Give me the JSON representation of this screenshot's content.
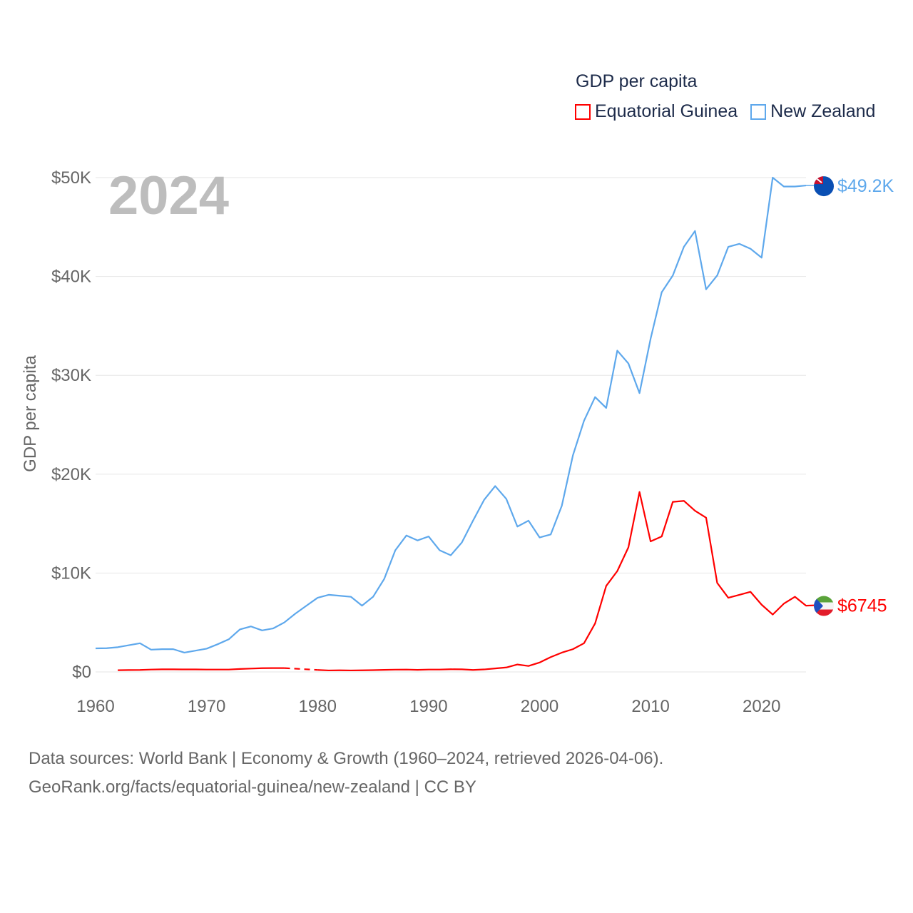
{
  "legend": {
    "title": "GDP per capita",
    "items": [
      {
        "name": "Equatorial Guinea",
        "color": "#ff0000"
      },
      {
        "name": "New Zealand",
        "color": "#5ea8ec"
      }
    ]
  },
  "chart_data": {
    "type": "line",
    "title": "GDP per capita",
    "year_label": "2024",
    "xlabel": "",
    "ylabel": "GDP per capita",
    "xlim": [
      1960,
      2024
    ],
    "ylim": [
      0,
      50000
    ],
    "x_ticks": [
      1960,
      1970,
      1980,
      1990,
      2000,
      2010,
      2020
    ],
    "y_ticks": [
      0,
      10000,
      20000,
      30000,
      40000,
      50000
    ],
    "y_tick_labels": [
      "$0",
      "$10K",
      "$20K",
      "$30K",
      "$40K",
      "$50K"
    ],
    "grid": true,
    "legend_position": "top-right",
    "series": [
      {
        "name": "New Zealand",
        "color": "#5ea8ec",
        "end_label": "$49.2K",
        "start_year": 1960,
        "values": [
          2380,
          2400,
          2500,
          2700,
          2900,
          2250,
          2300,
          2300,
          1950,
          2150,
          2350,
          2800,
          3300,
          4300,
          4600,
          4200,
          4400,
          5000,
          5900,
          6700,
          7500,
          7800,
          7700,
          7600,
          6700,
          7600,
          9400,
          12300,
          13800,
          13300,
          13700,
          12300,
          11800,
          13100,
          15300,
          17400,
          18800,
          17500,
          14700,
          15300,
          13600,
          13900,
          16800,
          21900,
          25400,
          27800,
          26700,
          32500,
          31200,
          28200,
          33700,
          38400,
          40100,
          43000,
          44600,
          38700,
          40100,
          43000,
          43300,
          42800,
          41900,
          50000,
          49100,
          49100,
          49200
        ]
      },
      {
        "name": "Equatorial Guinea",
        "color": "#ff0000",
        "end_label": "$6745",
        "start_year": 1962,
        "values": [
          170,
          190,
          200,
          240,
          260,
          260,
          250,
          250,
          240,
          240,
          240,
          300,
          340,
          380,
          390,
          390,
          null,
          null,
          200,
          150,
          160,
          150,
          160,
          180,
          210,
          230,
          240,
          210,
          240,
          240,
          270,
          260,
          200,
          250,
          350,
          450,
          750,
          600,
          950,
          1500,
          1950,
          2300,
          2900,
          4900,
          8700,
          10200,
          12600,
          18200,
          13200,
          13700,
          17200,
          17300,
          16300,
          15600,
          9000,
          7500,
          7800,
          8100,
          6800,
          5800,
          6900,
          7600,
          6700,
          6745
        ]
      }
    ]
  },
  "footer": {
    "line1": "Data sources: World Bank | Economy & Growth (1960–2024, retrieved 2026-04-06).",
    "line2": "GeoRank.org/facts/equatorial-guinea/new-zealand | CC BY"
  }
}
